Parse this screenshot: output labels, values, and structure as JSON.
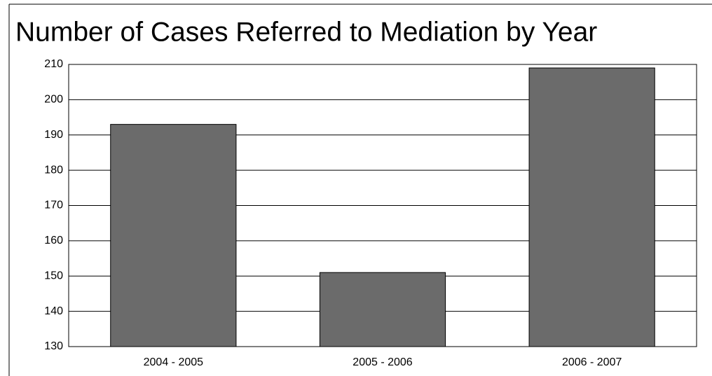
{
  "chart_data": {
    "type": "bar",
    "title": "Number of Cases Referred to Mediation by Year",
    "categories": [
      "2004 - 2005",
      "2005 - 2006",
      "2006 - 2007"
    ],
    "values": [
      193,
      151,
      209
    ],
    "color": "#6b6b6b",
    "ylim": [
      130,
      210
    ],
    "yticks": [
      130,
      140,
      150,
      160,
      170,
      180,
      190,
      200,
      210
    ],
    "grid": true
  }
}
